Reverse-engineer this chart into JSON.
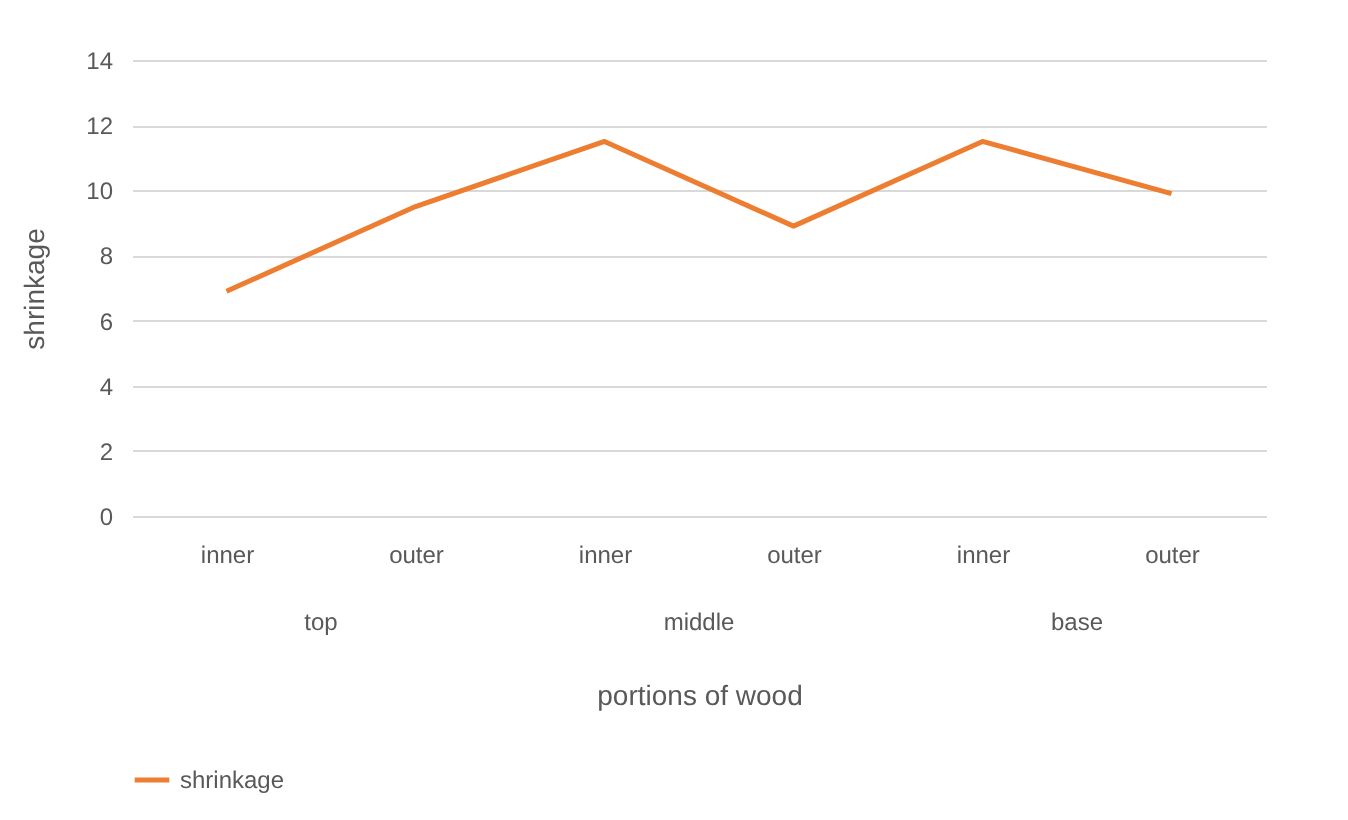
{
  "chart_data": {
    "type": "line",
    "xlabel": "portions of wood",
    "ylabel": "shrinkage",
    "categories": [
      "inner",
      "outer",
      "inner",
      "outer",
      "inner",
      "outer"
    ],
    "series": [
      {
        "name": "shrinkage",
        "color": "#ed7d31",
        "values": [
          6.9,
          9.5,
          11.5,
          8.9,
          11.5,
          9.9
        ]
      }
    ],
    "annotations": [
      "top",
      "middle",
      "base"
    ],
    "ylim": [
      0,
      14
    ],
    "yticks": [
      0,
      2,
      4,
      6,
      8,
      10,
      12,
      14
    ],
    "grid": "y",
    "legend": "bottom",
    "marker": "none",
    "line_style": "solid"
  }
}
